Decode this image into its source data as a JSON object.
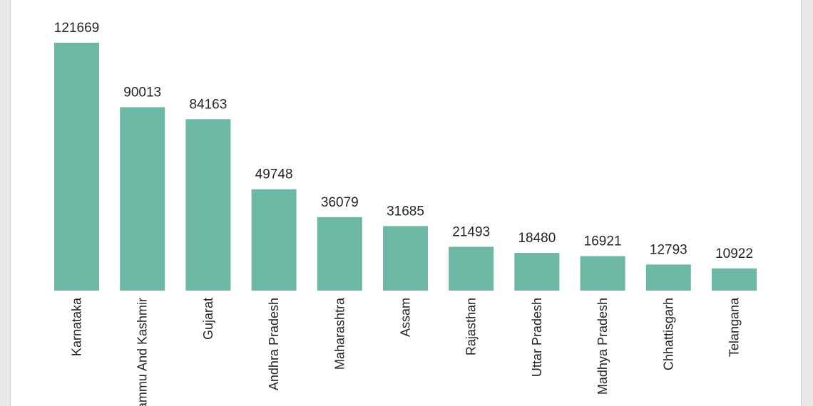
{
  "chart_data": {
    "type": "bar",
    "title": "",
    "xlabel": "",
    "ylabel": "",
    "categories": [
      "Karnataka",
      "Jammu And Kashmir",
      "Gujarat",
      "Andhra Pradesh",
      "Maharashtra",
      "Assam",
      "Rajasthan",
      "Uttar Pradesh",
      "Madhya Pradesh",
      "Chhattisgarh",
      "Telangana"
    ],
    "values": [
      121669,
      90013,
      84163,
      49748,
      36079,
      31685,
      21493,
      18480,
      16921,
      12793,
      10922
    ],
    "value_labels": [
      "121669",
      "90013",
      "84163",
      "49748",
      "36079",
      "31685",
      "21493",
      "18480",
      "16921",
      "12793",
      "10922"
    ],
    "ylim": [
      0,
      121669
    ],
    "grid": false,
    "colors": {
      "bar": "#6cb8a4",
      "text": "#252525",
      "background": "#ffffff"
    }
  }
}
